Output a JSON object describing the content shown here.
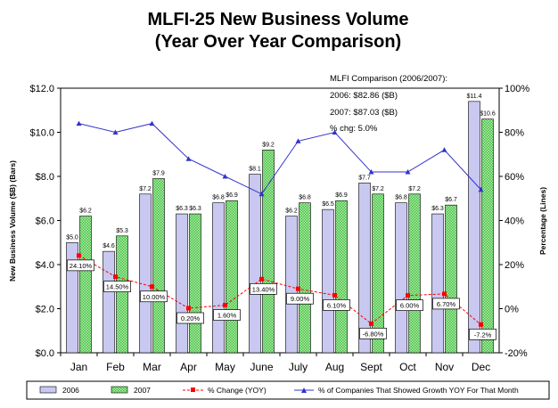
{
  "chart_data": {
    "type": "bar",
    "title": [
      "MLFI-25 New Business Volume",
      "(Year Over Year Comparison)"
    ],
    "categories": [
      "Jan",
      "Feb",
      "Mar",
      "Apr",
      "May",
      "June",
      "July",
      "Aug",
      "Sept",
      "Oct",
      "Nov",
      "Dec"
    ],
    "ylabel": "New Business Volume ($B) (Bars)",
    "y2label": "Percentage (Lines)",
    "ylim": [
      0,
      12
    ],
    "y2lim": [
      -20,
      100
    ],
    "yticks": [
      "$0.0",
      "$2.0",
      "$4.0",
      "$6.0",
      "$8.0",
      "$10.0",
      "$12.0"
    ],
    "y2ticks": [
      "-20%",
      "0%",
      "20%",
      "40%",
      "60%",
      "80%",
      "100%"
    ],
    "grid": false,
    "series": [
      {
        "name": "2006",
        "type": "bar",
        "color": "#c8c8f0",
        "values": [
          5.0,
          4.6,
          7.2,
          6.3,
          6.8,
          8.1,
          6.2,
          6.5,
          7.7,
          6.8,
          6.3,
          11.4
        ],
        "labels": [
          "$5.0",
          "$4.6",
          "$7.2",
          "$6.3",
          "$6.8",
          "$8.1",
          "$6.2",
          "$6.5",
          "$7.7",
          "$6.8",
          "$6.3",
          "$11.4"
        ]
      },
      {
        "name": "2007",
        "type": "bar",
        "color": "#66cc66",
        "values": [
          6.2,
          5.3,
          7.9,
          6.3,
          6.9,
          9.2,
          6.8,
          6.9,
          7.2,
          7.2,
          6.7,
          10.6
        ],
        "labels": [
          "$6.2",
          "$5.3",
          "$7.9",
          "$6.3",
          "$6.9",
          "$9.2",
          "$6.8",
          "$6.9",
          "$7.2",
          "$7.2",
          "$6.7",
          "$10.6"
        ]
      },
      {
        "name": "% Change (YOY)",
        "type": "line",
        "axis": "y2",
        "color": "#ff0000",
        "values": [
          24.1,
          14.5,
          10.0,
          0.2,
          1.6,
          13.4,
          9.0,
          6.1,
          -6.8,
          6.0,
          6.7,
          -7.2
        ],
        "labels": [
          "24.10%",
          "14.50%",
          "10.00%",
          "0.20%",
          "1.60%",
          "13.40%",
          "9.00%",
          "6.10%",
          "-6.80%",
          "6.00%",
          "6.70%",
          "-7.2%"
        ]
      },
      {
        "name": "% of Companies That Showed Growth YOY For That Month",
        "type": "line",
        "axis": "y2",
        "color": "#3333cc",
        "values": [
          84,
          80,
          84,
          68,
          60,
          52,
          76,
          80,
          62,
          62,
          72,
          54
        ]
      }
    ],
    "annotation": [
      "MLFI Comparison (2006/2007):",
      "2006: $82.86 ($B)",
      "2007: $87.03 ($B)",
      "% chg:  5.0%"
    ],
    "legend_position": "bottom"
  }
}
